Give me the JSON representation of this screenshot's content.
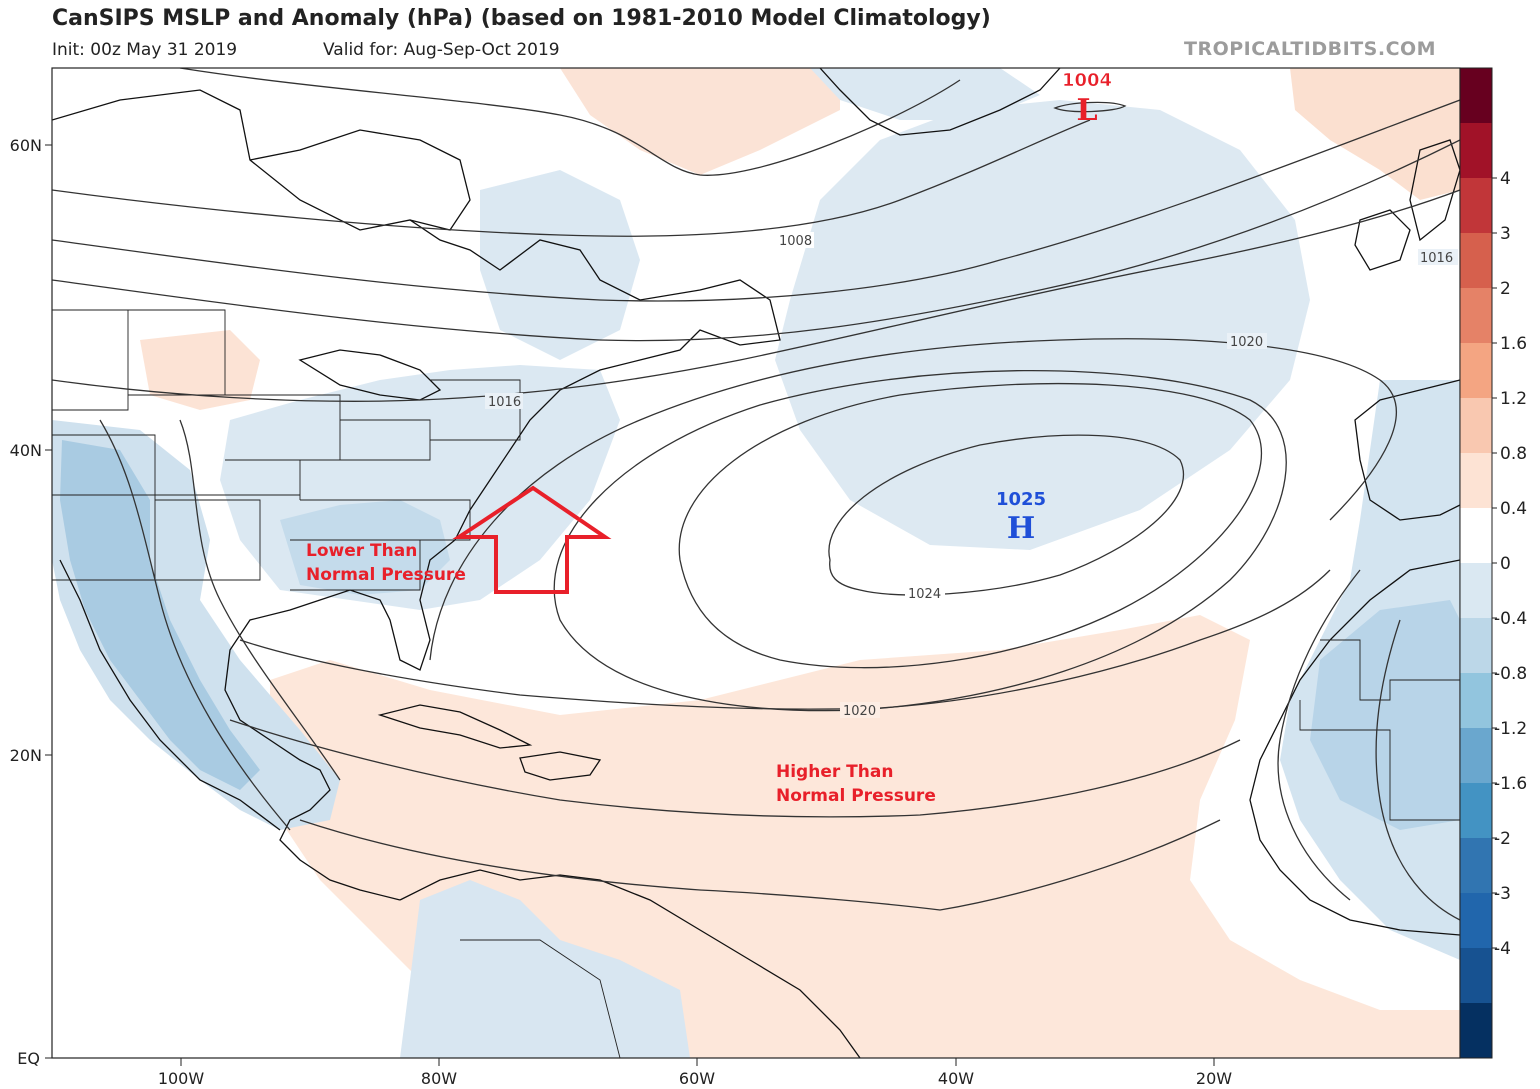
{
  "header": {
    "title": "CanSIPS MSLP and Anomaly (hPa) (based on 1981-2010 Model Climatology)",
    "init": "Init: 00z May 31 2019",
    "valid": "Valid for: Aug-Sep-Oct 2019",
    "brand": "TROPICALTIDBITS.COM"
  },
  "map": {
    "lat_labels": [
      "60N",
      "40N",
      "20N",
      "EQ"
    ],
    "lon_labels": [
      "100W",
      "80W",
      "60W",
      "40W",
      "20W"
    ],
    "isobar_labels": [
      {
        "id": "isobar-1008",
        "text": "1008"
      },
      {
        "id": "isobar-1016-west",
        "text": "1016"
      },
      {
        "id": "isobar-1016-east",
        "text": "1016"
      },
      {
        "id": "isobar-1020-north",
        "text": "1020"
      },
      {
        "id": "isobar-1024",
        "text": "1024"
      },
      {
        "id": "isobar-1020-south",
        "text": "1020"
      }
    ],
    "centers": {
      "low": {
        "value": "1004",
        "symbol": "L",
        "color": "#e8202a"
      },
      "high": {
        "value": "1025",
        "symbol": "H",
        "color": "#1f4fd8"
      }
    },
    "annotations": {
      "lower": [
        "Lower Than",
        "Normal Pressure"
      ],
      "higher": [
        "Higher Than",
        "Normal Pressure"
      ],
      "color": "#e8202a"
    }
  },
  "colorbar": {
    "labels": [
      "4",
      "3",
      "2",
      "1.6",
      "1.2",
      "0.8",
      "0.4",
      "0",
      "-0.4",
      "-0.8",
      "-1.2",
      "-1.6",
      "-2",
      "-3",
      "-4"
    ],
    "colors": [
      "#67001f",
      "#a11228",
      "#c13639",
      "#d6604d",
      "#e58267",
      "#f4a582",
      "#f9c8b0",
      "#fde3d4",
      "#ffffff",
      "#dae8f2",
      "#bcd7e8",
      "#92c5de",
      "#6aa7ce",
      "#4393c3",
      "#3175b1",
      "#2166ac",
      "#175291",
      "#053061"
    ]
  }
}
